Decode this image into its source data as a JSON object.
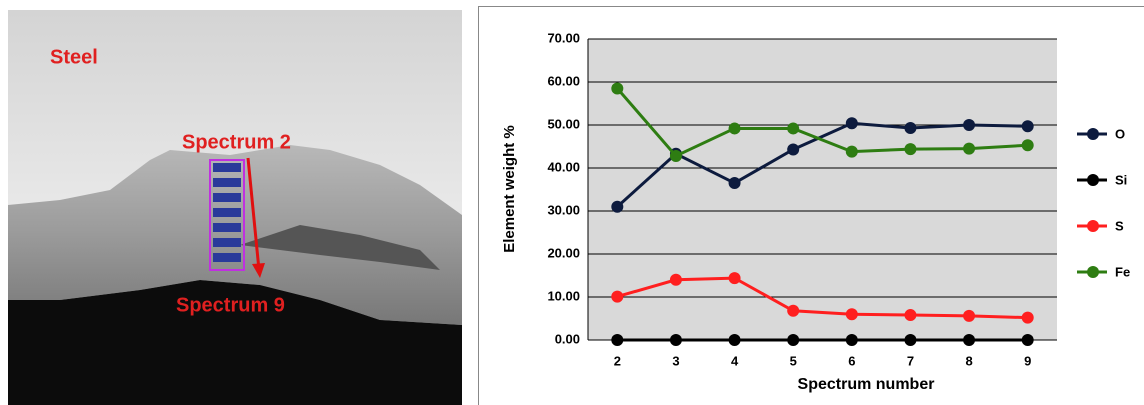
{
  "micrograph": {
    "labels": [
      "Steel",
      "Spectrum 2",
      "Spectrum 9"
    ]
  },
  "chart_data": {
    "type": "line",
    "x_label": "Spectrum number",
    "y_label": "Element weight %",
    "x": [
      2,
      3,
      4,
      5,
      6,
      7,
      8,
      9
    ],
    "xlim": [
      1.5,
      9.5
    ],
    "xticks": [
      2,
      3,
      4,
      5,
      6,
      7,
      8,
      9
    ],
    "ylim": [
      0,
      70
    ],
    "yticks": [
      {
        "value": 0,
        "label": "0.00"
      },
      {
        "value": 10,
        "label": "10.00"
      },
      {
        "value": 20,
        "label": "20.00"
      },
      {
        "value": 30,
        "label": "30.00"
      },
      {
        "value": 40,
        "label": "40.00"
      },
      {
        "value": 50,
        "label": "50.00"
      },
      {
        "value": 60,
        "label": "60.00"
      },
      {
        "value": 70,
        "label": "70.00"
      }
    ],
    "grid": true,
    "legend": "right",
    "series": [
      {
        "name": "O",
        "color": "#0d1b3e",
        "values": [
          31,
          43.3,
          36.5,
          44.3,
          50.4,
          49.3,
          50,
          49.7
        ]
      },
      {
        "name": "Si",
        "color": "#000000",
        "values": [
          0,
          0,
          0,
          0,
          0,
          0,
          0,
          0
        ]
      },
      {
        "name": "S",
        "color": "#ff1f1f",
        "values": [
          10.1,
          14,
          14.4,
          6.8,
          6,
          5.8,
          5.6,
          5.2
        ]
      },
      {
        "name": "Fe",
        "color": "#2e7d12",
        "values": [
          58.5,
          42.8,
          49.2,
          49.2,
          43.8,
          44.4,
          44.5,
          45.3
        ]
      }
    ]
  }
}
